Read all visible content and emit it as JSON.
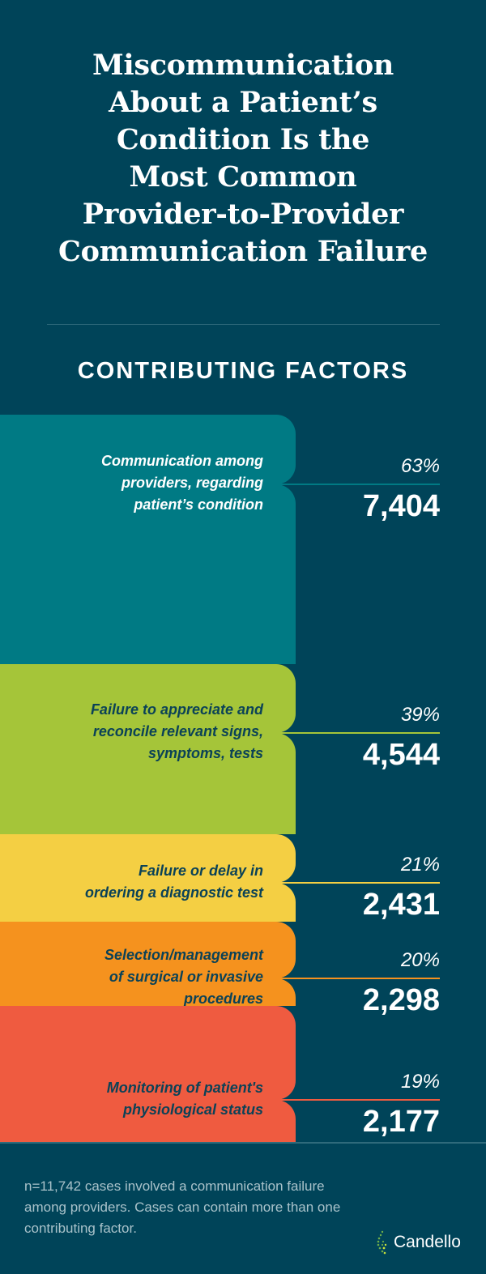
{
  "title": [
    "Miscommunication",
    "About a Patient’s",
    "Condition Is the",
    "Most Common",
    "Provider-to-Provider",
    "Communication Failure"
  ],
  "subtitle": "CONTRIBUTING FACTORS",
  "chart_data": {
    "type": "bar",
    "title": "Miscommunication About a Patient’s Condition Is the Most Common Provider-to-Provider Communication Failure",
    "subtitle": "CONTRIBUTING FACTORS",
    "categories": [
      "Communication among providers, regarding patient’s condition",
      "Failure to appreciate and reconcile relevant signs, symptoms, tests",
      "Failure or delay in ordering a diagnostic test",
      "Selection/management of surgical or invasive procedures",
      "Monitoring of patient's physiological status"
    ],
    "values": [
      7404,
      4544,
      2431,
      2298,
      2177
    ],
    "percents": [
      63,
      39,
      21,
      20,
      19
    ],
    "colors": [
      "#007a84",
      "#a5c539",
      "#f4cf43",
      "#f5921e",
      "#ef5b40"
    ]
  },
  "factors": [
    {
      "label": [
        "Communication among",
        "providers, regarding",
        "patient’s condition"
      ],
      "pct": "63%",
      "count": "7,404"
    },
    {
      "label": [
        "Failure to appreciate and",
        "reconcile relevant signs,",
        "symptoms, tests"
      ],
      "pct": "39%",
      "count": "4,544"
    },
    {
      "label": [
        "Failure or delay in",
        "ordering a diagnostic test"
      ],
      "pct": "21%",
      "count": "2,431"
    },
    {
      "label": [
        "Selection/management",
        "of surgical or invasive",
        "procedures"
      ],
      "pct": "20%",
      "count": "2,298"
    },
    {
      "label": [
        "Monitoring of patient's",
        "physiological status"
      ],
      "pct": "19%",
      "count": "2,177"
    }
  ],
  "footnote": "n=11,742 cases involved a communication failure among providers. Cases can contain more than one contributing factor.",
  "logo": "Candello",
  "colors": {
    "background": "#004459",
    "label_dark": "#0b4257",
    "label_light": "#ffffff"
  }
}
